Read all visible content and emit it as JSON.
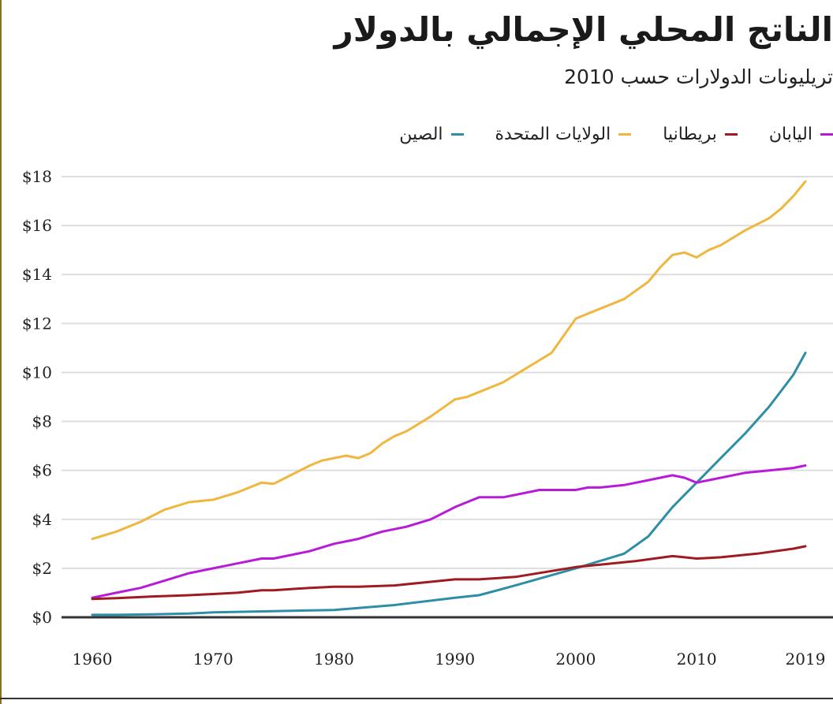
{
  "colors": {
    "china": "#2e8ea6",
    "usa": "#f0b73f",
    "uk": "#9e1b20",
    "japan": "#b81bd8",
    "grid": "#dddddd",
    "axis": "#333333",
    "frame": "#8a6d1e"
  },
  "chart_data": {
    "type": "line",
    "title": "الناتج المحلي الإجمالي بالدولار",
    "subtitle": "تريليونات الدولارات حسب 2010",
    "xlabel": "",
    "ylabel": "",
    "xlim": [
      1960,
      2019.8
    ],
    "ylim": [
      0,
      18
    ],
    "grid": true,
    "legend_position": "top",
    "x_ticks": [
      1960,
      1970,
      1980,
      1990,
      2000,
      2010,
      2019
    ],
    "x_tick_labels": [
      "1960",
      "1970",
      "1980",
      "1990",
      "2000",
      "2010",
      "2019"
    ],
    "y_ticks": [
      0,
      2,
      4,
      6,
      8,
      10,
      12,
      14,
      16,
      18
    ],
    "y_tick_labels": [
      "$0",
      "$2",
      "$4",
      "$6",
      "$8",
      "$10",
      "$12",
      "$14",
      "$16",
      "$18"
    ],
    "legend": [
      {
        "key": "japan",
        "label": "اليابان"
      },
      {
        "key": "uk",
        "label": "بريطانيا"
      },
      {
        "key": "usa",
        "label": "الولايات المتحدة"
      },
      {
        "key": "china",
        "label": "الصين"
      }
    ],
    "series": [
      {
        "key": "usa",
        "name": "الولايات المتحدة",
        "x": [
          1960,
          1962,
          1964,
          1966,
          1968,
          1970,
          1972,
          1974,
          1975,
          1976,
          1978,
          1979,
          1980,
          1981,
          1982,
          1983,
          1984,
          1985,
          1986,
          1988,
          1990,
          1991,
          1992,
          1994,
          1996,
          1998,
          2000,
          2002,
          2004,
          2006,
          2007,
          2008,
          2009,
          2010,
          2011,
          2012,
          2014,
          2016,
          2017,
          2018,
          2019
        ],
        "values": [
          3.2,
          3.5,
          3.9,
          4.4,
          4.7,
          4.8,
          5.1,
          5.5,
          5.45,
          5.7,
          6.2,
          6.4,
          6.5,
          6.6,
          6.5,
          6.7,
          7.1,
          7.4,
          7.6,
          8.2,
          8.9,
          9.0,
          9.2,
          9.6,
          10.2,
          10.8,
          12.2,
          12.6,
          13.0,
          13.7,
          14.3,
          14.8,
          14.9,
          14.7,
          15.0,
          15.2,
          15.8,
          16.3,
          16.7,
          17.2,
          17.8
        ]
      },
      {
        "key": "china",
        "name": "الصين",
        "x": [
          1960,
          1962,
          1965,
          1968,
          1970,
          1975,
          1980,
          1985,
          1990,
          1992,
          1995,
          2000,
          2002,
          2004,
          2006,
          2008,
          2009,
          2010,
          2012,
          2014,
          2016,
          2018,
          2019
        ],
        "values": [
          0.1,
          0.1,
          0.12,
          0.15,
          0.2,
          0.25,
          0.3,
          0.5,
          0.8,
          0.9,
          1.3,
          2.0,
          2.3,
          2.6,
          3.3,
          4.5,
          5.0,
          5.5,
          6.5,
          7.5,
          8.6,
          9.9,
          10.8
        ]
      },
      {
        "key": "japan",
        "name": "اليابان",
        "x": [
          1960,
          1962,
          1964,
          1966,
          1968,
          1970,
          1971,
          1972,
          1973,
          1974,
          1975,
          1978,
          1980,
          1982,
          1984,
          1986,
          1988,
          1990,
          1991,
          1992,
          1993,
          1994,
          1996,
          1997,
          1998,
          2000,
          2001,
          2002,
          2004,
          2006,
          2007,
          2008,
          2009,
          2010,
          2011,
          2012,
          2014,
          2016,
          2018,
          2019
        ],
        "values": [
          0.8,
          1.0,
          1.2,
          1.5,
          1.8,
          2.0,
          2.1,
          2.2,
          2.3,
          2.4,
          2.4,
          2.7,
          3.0,
          3.2,
          3.5,
          3.7,
          4.0,
          4.5,
          4.7,
          4.9,
          4.9,
          4.9,
          5.1,
          5.2,
          5.2,
          5.2,
          5.3,
          5.3,
          5.4,
          5.6,
          5.7,
          5.8,
          5.7,
          5.5,
          5.6,
          5.7,
          5.9,
          6.0,
          6.1,
          6.2
        ]
      },
      {
        "key": "uk",
        "name": "بريطانيا",
        "x": [
          1960,
          1962,
          1965,
          1968,
          1970,
          1972,
          1974,
          1975,
          1978,
          1980,
          1982,
          1985,
          1988,
          1990,
          1992,
          1995,
          2000,
          2005,
          2008,
          2009,
          2010,
          2012,
          2015,
          2018,
          2019
        ],
        "values": [
          0.75,
          0.78,
          0.85,
          0.9,
          0.95,
          1.0,
          1.1,
          1.1,
          1.2,
          1.25,
          1.25,
          1.3,
          1.45,
          1.55,
          1.55,
          1.65,
          2.05,
          2.3,
          2.5,
          2.45,
          2.4,
          2.45,
          2.6,
          2.8,
          2.9
        ]
      }
    ]
  }
}
